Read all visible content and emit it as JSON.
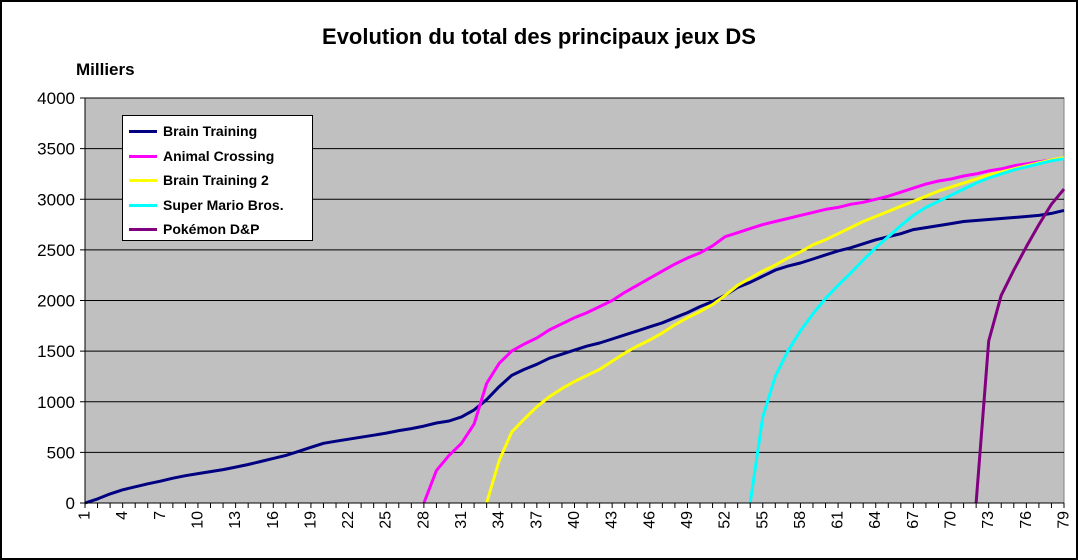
{
  "chart_data": {
    "type": "line",
    "title": "Evolution du total des principaux jeux DS",
    "ylabel": "Milliers",
    "xlabel": "",
    "ylim": [
      0,
      4000
    ],
    "xlim": [
      1,
      79
    ],
    "yticks": [
      0,
      500,
      1000,
      1500,
      2000,
      2500,
      3000,
      3500,
      4000
    ],
    "xtick_labels": [
      1,
      4,
      7,
      10,
      13,
      16,
      19,
      22,
      25,
      28,
      31,
      34,
      37,
      40,
      43,
      46,
      49,
      52,
      55,
      58,
      61,
      64,
      67,
      70,
      73,
      76,
      79
    ],
    "grid": "horizontal",
    "legend_position": "top-left",
    "plot_background": "#c0c0c0",
    "series": [
      {
        "name": "Brain Training",
        "color": "#000080",
        "x": [
          1,
          2,
          3,
          4,
          5,
          6,
          7,
          8,
          9,
          10,
          11,
          12,
          13,
          14,
          15,
          16,
          17,
          18,
          19,
          20,
          21,
          22,
          23,
          24,
          25,
          26,
          27,
          28,
          29,
          30,
          31,
          32,
          33,
          34,
          35,
          36,
          37,
          38,
          39,
          40,
          41,
          42,
          43,
          44,
          45,
          46,
          47,
          48,
          49,
          50,
          51,
          52,
          53,
          54,
          55,
          56,
          57,
          58,
          59,
          60,
          61,
          62,
          63,
          64,
          65,
          66,
          67,
          68,
          69,
          70,
          71,
          72,
          73,
          74,
          75,
          76,
          77,
          78,
          79
        ],
        "values": [
          0,
          40,
          90,
          130,
          160,
          190,
          215,
          245,
          270,
          290,
          310,
          330,
          355,
          380,
          410,
          440,
          470,
          510,
          550,
          590,
          610,
          630,
          650,
          670,
          690,
          715,
          735,
          760,
          790,
          810,
          850,
          920,
          1020,
          1150,
          1260,
          1320,
          1370,
          1430,
          1470,
          1510,
          1550,
          1580,
          1620,
          1660,
          1700,
          1740,
          1780,
          1830,
          1880,
          1940,
          1990,
          2050,
          2130,
          2180,
          2240,
          2300,
          2340,
          2370,
          2410,
          2450,
          2490,
          2520,
          2560,
          2600,
          2630,
          2660,
          2700,
          2720,
          2740,
          2760,
          2780,
          2790,
          2800,
          2810,
          2820,
          2830,
          2840,
          2860,
          2890
        ]
      },
      {
        "name": "Animal Crossing",
        "color": "#ff00ff",
        "x": [
          28,
          29,
          30,
          31,
          32,
          33,
          34,
          35,
          36,
          37,
          38,
          39,
          40,
          41,
          42,
          43,
          44,
          45,
          46,
          47,
          48,
          49,
          50,
          51,
          52,
          53,
          54,
          55,
          56,
          57,
          58,
          59,
          60,
          61,
          62,
          63,
          64,
          65,
          66,
          67,
          68,
          69,
          70,
          71,
          72,
          73,
          74,
          75,
          76,
          77,
          78,
          79
        ],
        "values": [
          0,
          320,
          470,
          590,
          780,
          1180,
          1380,
          1500,
          1570,
          1630,
          1710,
          1770,
          1830,
          1880,
          1940,
          2000,
          2080,
          2150,
          2220,
          2290,
          2360,
          2420,
          2470,
          2540,
          2630,
          2670,
          2710,
          2750,
          2780,
          2810,
          2840,
          2870,
          2900,
          2920,
          2950,
          2970,
          3000,
          3030,
          3070,
          3110,
          3150,
          3180,
          3200,
          3230,
          3250,
          3280,
          3300,
          3330,
          3350,
          3370,
          3390,
          3400
        ]
      },
      {
        "name": "Brain Training 2",
        "color": "#ffff00",
        "x": [
          33,
          34,
          35,
          36,
          37,
          38,
          39,
          40,
          41,
          42,
          43,
          44,
          45,
          46,
          47,
          48,
          49,
          50,
          51,
          52,
          53,
          54,
          55,
          56,
          57,
          58,
          59,
          60,
          61,
          62,
          63,
          64,
          65,
          66,
          67,
          68,
          69,
          70,
          71,
          72,
          73,
          74,
          75,
          76,
          77,
          78,
          79
        ],
        "values": [
          0,
          420,
          700,
          830,
          950,
          1050,
          1130,
          1200,
          1260,
          1320,
          1400,
          1480,
          1550,
          1610,
          1680,
          1760,
          1830,
          1890,
          1960,
          2050,
          2150,
          2220,
          2290,
          2350,
          2420,
          2480,
          2550,
          2600,
          2660,
          2720,
          2780,
          2830,
          2880,
          2930,
          2980,
          3030,
          3080,
          3120,
          3160,
          3200,
          3240,
          3270,
          3300,
          3330,
          3360,
          3390,
          3410
        ]
      },
      {
        "name": "Super Mario Bros.",
        "color": "#00ffff",
        "x": [
          54,
          55,
          56,
          57,
          58,
          59,
          60,
          61,
          62,
          63,
          64,
          65,
          66,
          67,
          68,
          69,
          70,
          71,
          72,
          73,
          74,
          75,
          76,
          77,
          78,
          79
        ],
        "values": [
          0,
          850,
          1250,
          1500,
          1700,
          1870,
          2020,
          2150,
          2270,
          2400,
          2520,
          2630,
          2740,
          2840,
          2920,
          2980,
          3040,
          3100,
          3160,
          3210,
          3250,
          3290,
          3320,
          3350,
          3380,
          3400
        ]
      },
      {
        "name": "Pokémon D&P",
        "color": "#800080",
        "x": [
          72,
          73,
          74,
          75,
          76,
          77,
          78,
          79
        ],
        "values": [
          0,
          1600,
          2050,
          2300,
          2530,
          2750,
          2950,
          3100
        ]
      }
    ]
  }
}
